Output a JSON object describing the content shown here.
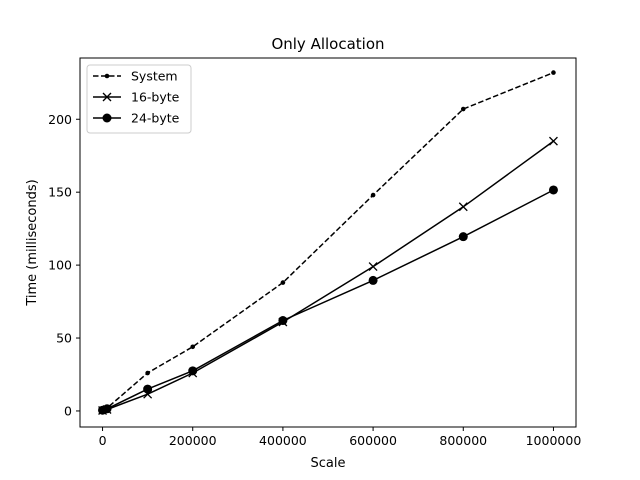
{
  "chart_data": {
    "type": "line",
    "title": "Only Allocation",
    "xlabel": "Scale",
    "ylabel": "Time (milliseconds)",
    "xlim": [
      -50000,
      1050000
    ],
    "ylim": [
      -11,
      242
    ],
    "x_ticks": [
      0,
      200000,
      400000,
      600000,
      800000,
      1000000
    ],
    "x_tick_labels": [
      "0",
      "200000",
      "400000",
      "600000",
      "800000",
      "1000000"
    ],
    "y_ticks": [
      0,
      50,
      100,
      150,
      200
    ],
    "y_tick_labels": [
      "0",
      "50",
      "100",
      "150",
      "200"
    ],
    "grid": false,
    "legend_position": "top-left",
    "x": [
      0,
      10000,
      100000,
      200000,
      400000,
      600000,
      800000,
      1000000
    ],
    "series": [
      {
        "name": "System",
        "values": [
          0.5,
          2,
          26,
          44,
          88,
          148,
          207,
          232
        ],
        "line_style": "dashed",
        "marker": "small-dot",
        "color": "#000000"
      },
      {
        "name": "16-byte",
        "values": [
          0.3,
          1,
          11.5,
          26,
          61,
          99,
          140,
          185
        ],
        "line_style": "solid",
        "marker": "x",
        "color": "#000000"
      },
      {
        "name": "24-byte",
        "values": [
          0.5,
          1.5,
          15,
          27.5,
          62,
          89.5,
          119.5,
          151.5
        ],
        "line_style": "solid",
        "marker": "circle",
        "color": "#000000"
      }
    ]
  }
}
